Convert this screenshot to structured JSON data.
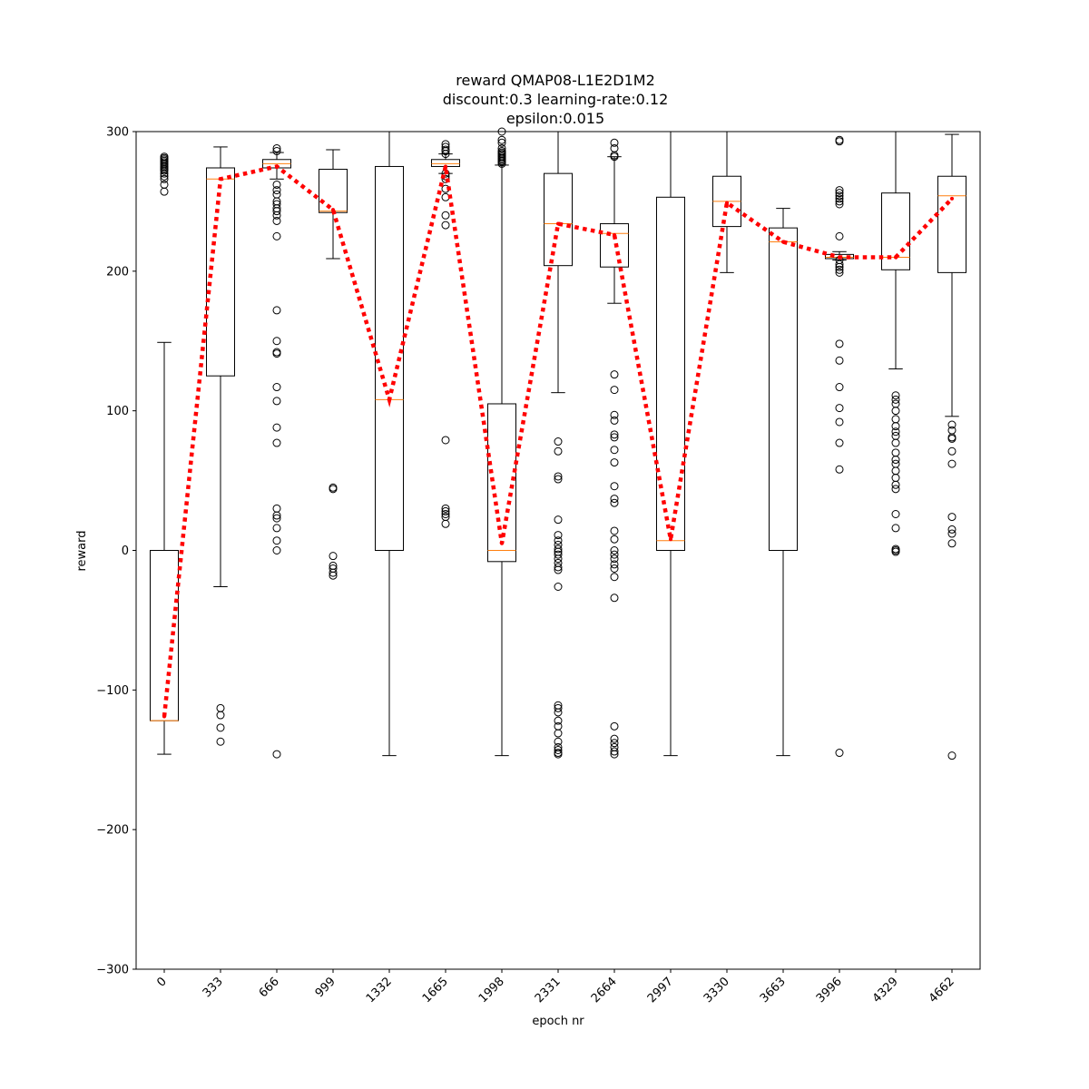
{
  "chart_data": {
    "type": "box",
    "title_lines": [
      "reward QMAP08-L1E2D1M2",
      "discount:0.3 learning-rate:0.12",
      "epsilon:0.015"
    ],
    "xlabel": "epoch nr",
    "ylabel": "reward",
    "ylim": [
      -300,
      300
    ],
    "yticks": [
      -300,
      -200,
      -100,
      0,
      100,
      200,
      300
    ],
    "ytick_labels": [
      "−300",
      "−200",
      "−100",
      "0",
      "100",
      "200",
      "300"
    ],
    "categories": [
      "0",
      "333",
      "666",
      "999",
      "1332",
      "1665",
      "1998",
      "2331",
      "2664",
      "2997",
      "3330",
      "3663",
      "3996",
      "4329",
      "4662"
    ],
    "grid": false,
    "colors": {
      "box": "#000000",
      "median": "#ff7f0e",
      "mean_line": "#ff0000"
    },
    "boxes": [
      {
        "q1": -122,
        "median": -122,
        "q3": 0,
        "whisker_low": -146,
        "whisker_high": 149,
        "fliers": [
          257,
          262,
          266,
          268,
          270,
          272,
          273,
          274,
          275,
          276,
          277,
          278,
          279,
          280,
          281,
          282
        ]
      },
      {
        "q1": 125,
        "median": 266,
        "q3": 274,
        "whisker_low": -26,
        "whisker_high": 289,
        "fliers": [
          -113,
          -118,
          -127,
          -137
        ]
      },
      {
        "q1": 274,
        "median": 277,
        "q3": 280,
        "whisker_low": 266,
        "whisker_high": 285,
        "fliers": [
          288,
          286,
          262,
          258,
          255,
          250,
          248,
          245,
          243,
          240,
          236,
          225,
          172,
          150,
          142,
          141,
          117,
          107,
          88,
          77,
          30,
          25,
          23,
          16,
          7,
          0,
          -146
        ]
      },
      {
        "q1": 242,
        "median": 243,
        "q3": 273,
        "whisker_low": 209,
        "whisker_high": 287,
        "fliers": [
          45,
          44,
          -4,
          -11,
          -13,
          -16,
          -18
        ]
      },
      {
        "q1": 0,
        "median": 108,
        "q3": 275,
        "whisker_low": -147,
        "whisker_high": 300,
        "fliers": []
      },
      {
        "q1": 275,
        "median": 277,
        "q3": 280,
        "whisker_low": 270,
        "whisker_high": 284,
        "fliers": [
          291,
          289,
          287,
          286,
          284,
          270,
          268,
          266,
          259,
          253,
          240,
          233,
          79,
          30,
          28,
          26,
          24,
          19
        ]
      },
      {
        "q1": -8,
        "median": 0,
        "q3": 105,
        "whisker_low": -147,
        "whisker_high": 276,
        "fliers": [
          300,
          294,
          292,
          288,
          286,
          285,
          284,
          283,
          282,
          281,
          280,
          279,
          278,
          277
        ]
      },
      {
        "q1": 204,
        "median": 234,
        "q3": 270,
        "whisker_low": 113,
        "whisker_high": 300,
        "fliers": [
          78,
          71,
          53,
          51,
          22,
          11,
          7,
          4,
          1,
          -1,
          -3,
          -6,
          -9,
          -12,
          -14,
          -26,
          -111,
          -113,
          -116,
          -122,
          -126,
          -131,
          -137,
          -141,
          -143,
          -145,
          -146
        ]
      },
      {
        "q1": 203,
        "median": 227,
        "q3": 234,
        "whisker_low": 177,
        "whisker_high": 282,
        "fliers": [
          292,
          288,
          283,
          282,
          126,
          115,
          97,
          93,
          83,
          81,
          72,
          63,
          46,
          37,
          34,
          14,
          8,
          0,
          -3,
          -6,
          -10,
          -13,
          -19,
          -34,
          -126,
          -135,
          -138,
          -141,
          -144,
          -146
        ]
      },
      {
        "q1": 0,
        "median": 7,
        "q3": 253,
        "whisker_low": -147,
        "whisker_high": 300,
        "fliers": []
      },
      {
        "q1": 232,
        "median": 250,
        "q3": 268,
        "whisker_low": 199,
        "whisker_high": 300,
        "fliers": []
      },
      {
        "q1": 0,
        "median": 221,
        "q3": 231,
        "whisker_low": -147,
        "whisker_high": 245,
        "fliers": []
      },
      {
        "q1": 209,
        "median": 210,
        "q3": 212,
        "whisker_low": 208,
        "whisker_high": 214,
        "fliers": [
          294,
          293,
          258,
          256,
          254,
          252,
          250,
          248,
          225,
          208,
          205,
          203,
          201,
          199,
          148,
          136,
          117,
          102,
          92,
          77,
          58,
          -145
        ]
      },
      {
        "q1": 201,
        "median": 210,
        "q3": 256,
        "whisker_low": 130,
        "whisker_high": 300,
        "fliers": [
          111,
          108,
          105,
          100,
          94,
          89,
          85,
          82,
          77,
          70,
          65,
          62,
          57,
          52,
          47,
          44,
          26,
          16,
          1,
          0,
          -1
        ]
      },
      {
        "q1": 199,
        "median": 254,
        "q3": 268,
        "whisker_low": 96,
        "whisker_high": 298,
        "fliers": [
          90,
          86,
          81,
          80,
          71,
          62,
          24,
          15,
          12,
          5,
          -147
        ]
      }
    ],
    "mean_series": {
      "style": "dotted",
      "values": [
        -119,
        266,
        275,
        244,
        108,
        275,
        5,
        234,
        226,
        8,
        249,
        221,
        210,
        210,
        252
      ]
    }
  }
}
